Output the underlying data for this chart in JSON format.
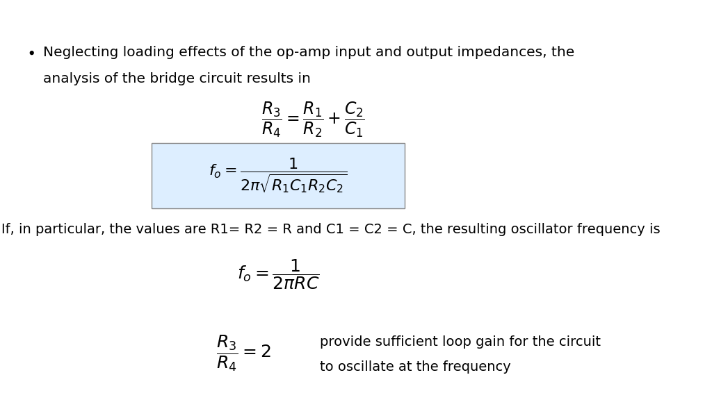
{
  "background_color": "#ffffff",
  "bullet_text_line1": "Neglecting loading effects of the op-amp input and output impedances, the",
  "bullet_text_line2": "analysis of the bridge circuit results in",
  "text_particular": "If, in particular, the values are R1= R2 = R and C1 = C2 = C, the resulting oscillator frequency is",
  "side_text_line1": "provide sufficient loop gain for the circuit",
  "side_text_line2": "to oscillate at the frequency",
  "box_facecolor": "#ddeeff",
  "box_edgecolor": "#888888",
  "text_fontsize": 14.5,
  "eq_fontsize": 15
}
